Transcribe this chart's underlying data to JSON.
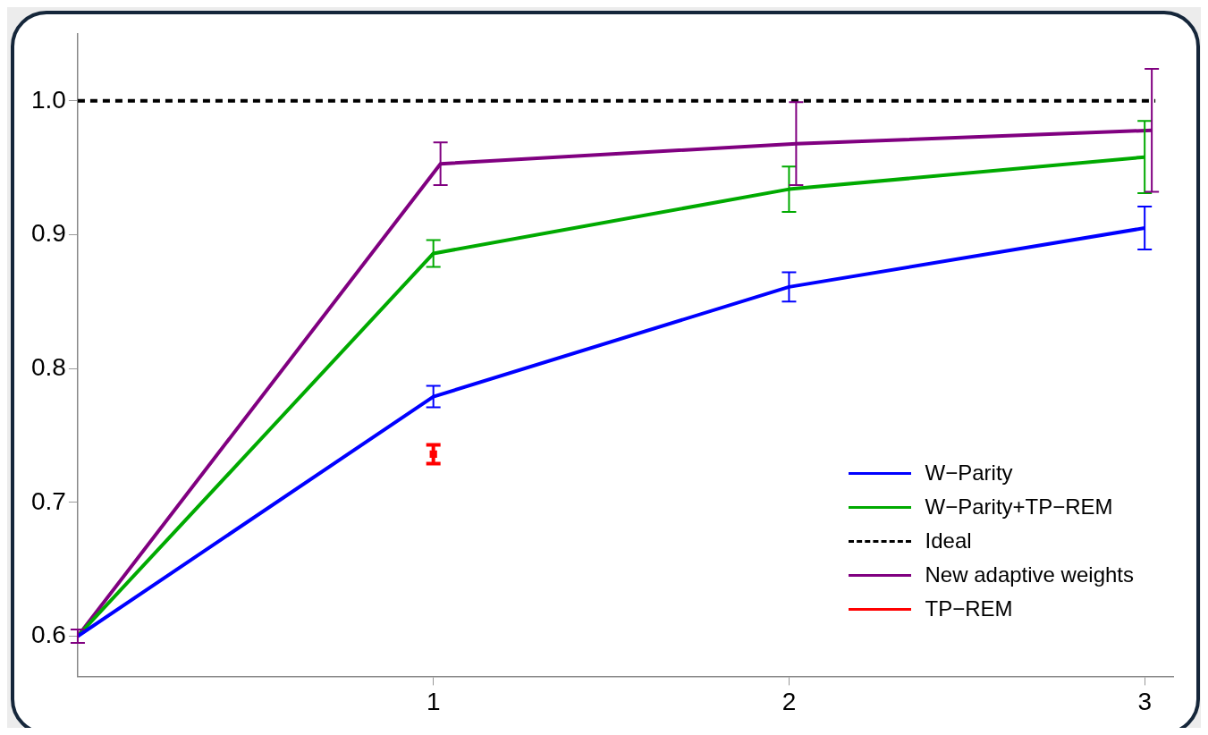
{
  "chart_data": {
    "type": "line",
    "xlim": [
      0,
      3.08
    ],
    "ylim": [
      0.57,
      1.05
    ],
    "xticks": [
      1,
      2,
      3
    ],
    "yticks": [
      0.6,
      0.7,
      0.8,
      0.9,
      {
        "value": 1.0,
        "label": "1.0"
      }
    ],
    "grid": false,
    "legend": "bottom right",
    "marker": "none",
    "line_style": "solid",
    "series": [
      {
        "name": "W−Parity",
        "color": "#0000ff",
        "x": [
          0,
          1,
          2,
          3
        ],
        "values": [
          0.6,
          0.779,
          0.861,
          0.905
        ],
        "errors": [
          null,
          0.008,
          0.011,
          0.016
        ]
      },
      {
        "name": "W−Parity+TP−REM",
        "color": "#00aa00",
        "x": [
          0,
          1,
          2,
          3
        ],
        "values": [
          0.6,
          0.886,
          0.934,
          0.958
        ],
        "errors": [
          null,
          0.01,
          0.017,
          0.027
        ]
      },
      {
        "name": "Ideal",
        "color": "#000000",
        "x": [
          0,
          3.03
        ],
        "values": [
          1.0,
          1.0
        ],
        "line_style": "dashed"
      },
      {
        "name": "New adaptive weights",
        "color": "#800080",
        "x": [
          0,
          1.02,
          2.02,
          3.02
        ],
        "values": [
          0.6,
          0.953,
          0.968,
          0.978
        ],
        "errors": [
          0.005,
          0.016,
          0.031,
          0.046
        ]
      },
      {
        "name": "TP−REM",
        "color": "#ff0000",
        "x": [
          1
        ],
        "values": [
          0.736
        ],
        "errors": [
          0.007
        ],
        "marker": "square"
      }
    ]
  }
}
